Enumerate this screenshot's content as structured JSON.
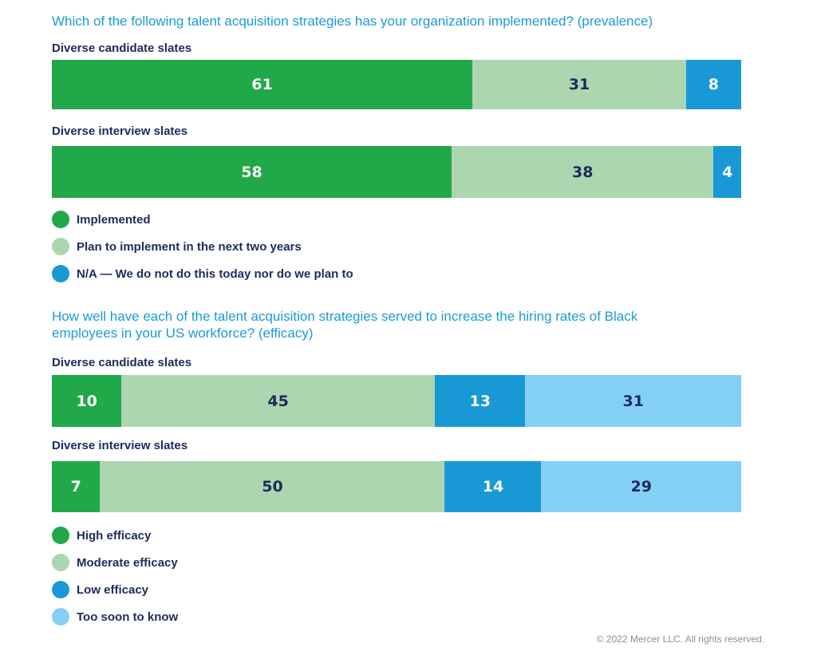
{
  "chart_data": [
    {
      "type": "bar",
      "orientation": "horizontal-stacked-100",
      "title": "Which of the following talent acquisition strategies has your organization implemented? (prevalence)",
      "categories": [
        "Diverse candidate slates",
        "Diverse interview slates"
      ],
      "series": [
        {
          "name": "Implemented",
          "values": [
            61,
            58
          ],
          "color": "#21a848"
        },
        {
          "name": "Plan to implement in the next two years",
          "values": [
            31,
            38
          ],
          "color": "#acd6b0"
        },
        {
          "name": "N/A — We do not do this today nor do we plan to",
          "values": [
            8,
            4
          ],
          "color": "#1899d6"
        }
      ]
    },
    {
      "type": "bar",
      "orientation": "horizontal-stacked-100",
      "title": "How well have each of the talent acquisition strategies served to increase the hiring rates of Black employees in your US workforce? (efficacy)",
      "categories": [
        "Diverse candidate slates",
        "Diverse interview slates"
      ],
      "series": [
        {
          "name": "High efficacy",
          "values": [
            10,
            7
          ],
          "color": "#21a848"
        },
        {
          "name": "Moderate efficacy",
          "values": [
            45,
            50
          ],
          "color": "#acd6b0"
        },
        {
          "name": "Low efficacy",
          "values": [
            13,
            14
          ],
          "color": "#1899d6"
        },
        {
          "name": "Too soon to know",
          "values": [
            31,
            29
          ],
          "color": "#84d0f5"
        }
      ]
    }
  ],
  "footer": {
    "copyright": "© 2022 Mercer LLC. All rights reserved."
  }
}
